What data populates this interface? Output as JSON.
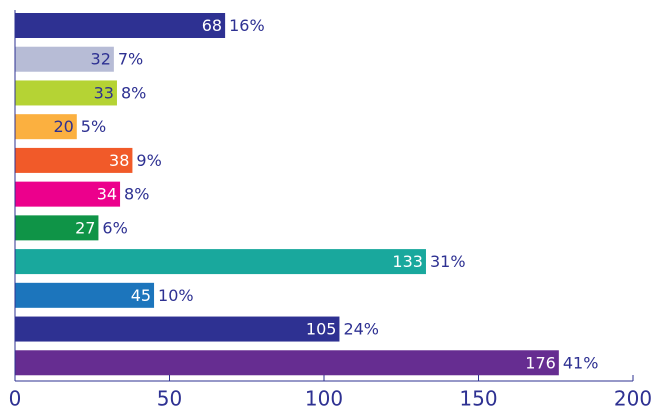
{
  "chart_data": {
    "type": "barh",
    "values": [
      68,
      32,
      33,
      20,
      38,
      34,
      27,
      133,
      45,
      105,
      176
    ],
    "percent_labels": [
      "16%",
      "7%",
      "8%",
      "5%",
      "9%",
      "8%",
      "6%",
      "31%",
      "10%",
      "24%",
      "41%"
    ],
    "colors": [
      "#2e3192",
      "#b7bcd6",
      "#b5d334",
      "#fbb040",
      "#f15a29",
      "#ec008c",
      "#0f9447",
      "#19a89d",
      "#1c75bc",
      "#2e3192",
      "#662d91"
    ],
    "xlim": [
      0,
      200
    ],
    "xticks": [
      0,
      50,
      100,
      150,
      200
    ]
  }
}
